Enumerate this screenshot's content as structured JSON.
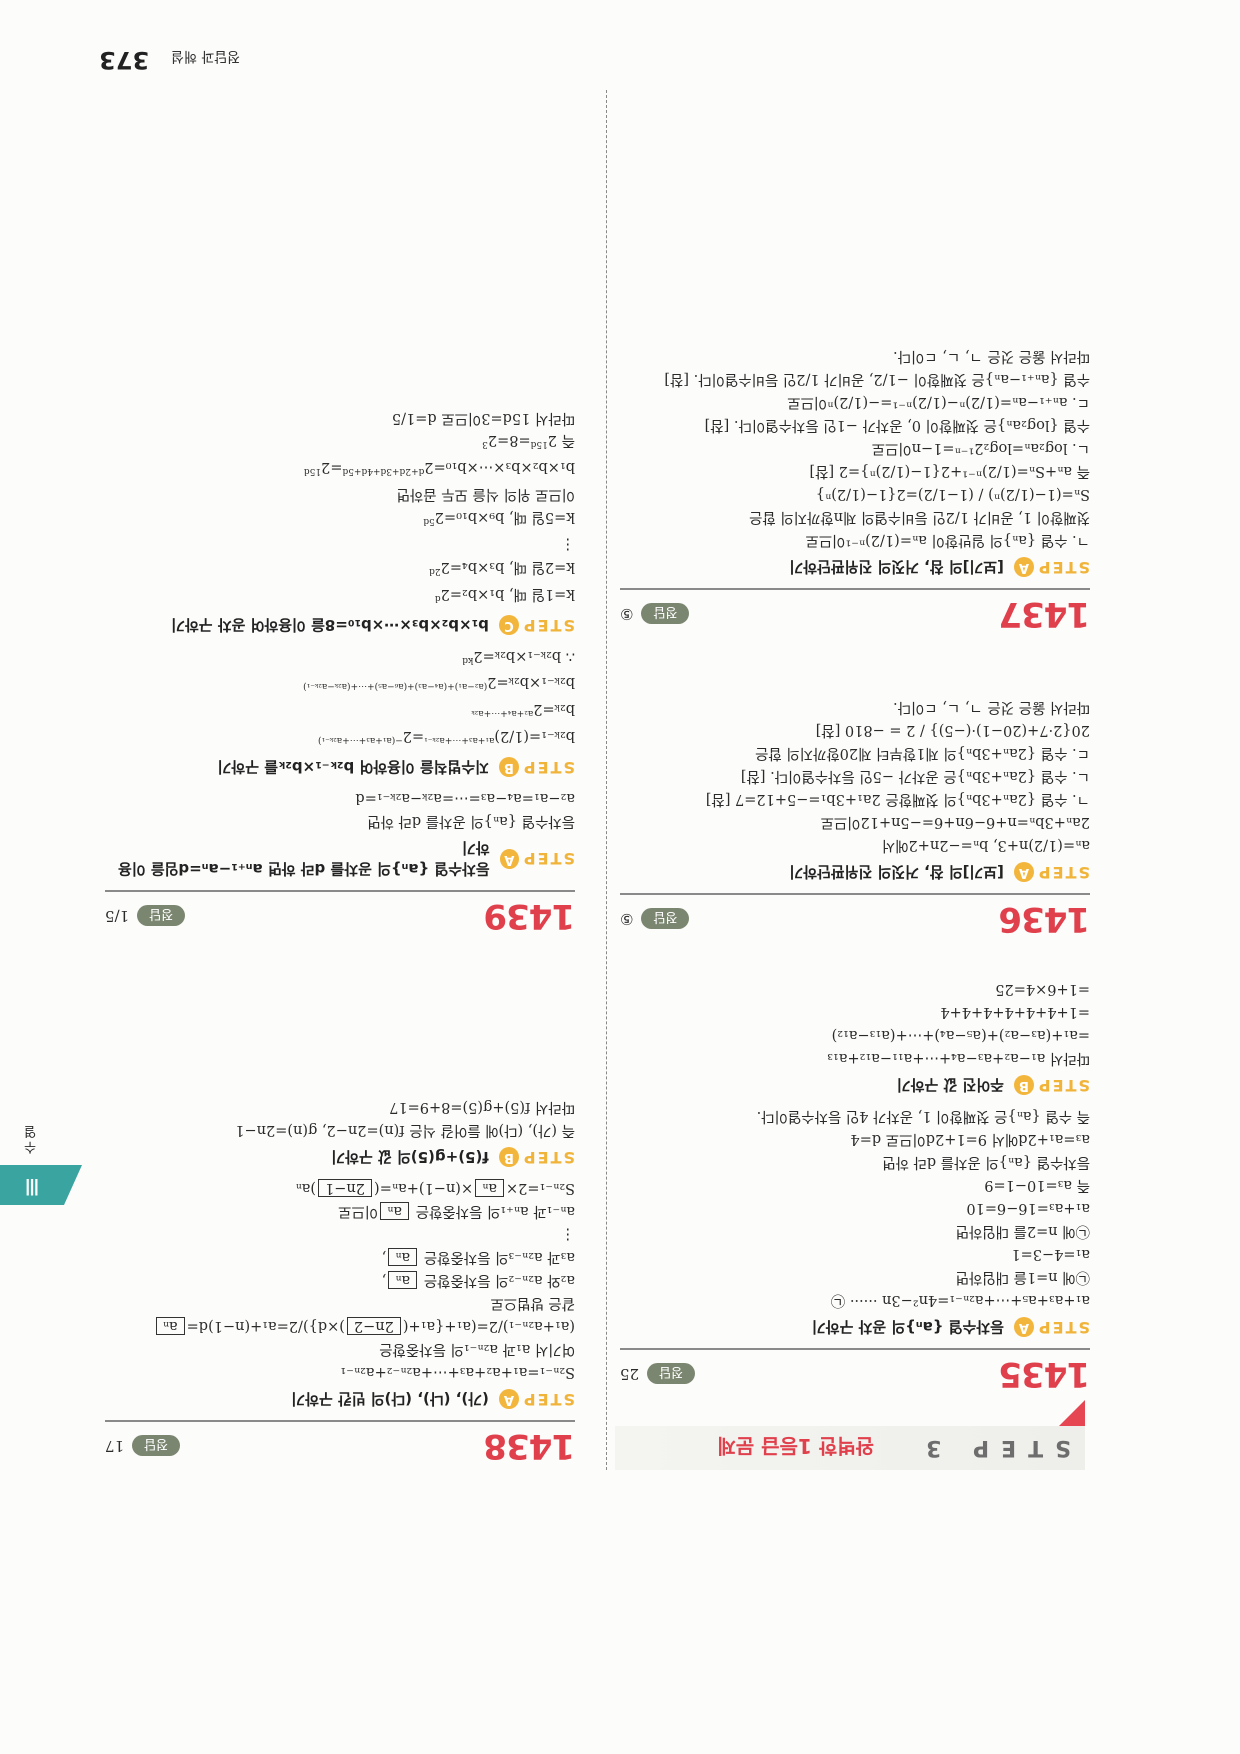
{
  "header": {
    "section_label": "정답과 해설",
    "page_number": "373"
  },
  "side_tab": {
    "numeral": "Ⅲ",
    "label": "수열"
  },
  "banner": {
    "step": "STEP 3",
    "title": "완벽한 1등급 문제"
  },
  "colors": {
    "accent_red": "#e0404c",
    "step_yellow": "#f0b43a",
    "tab_teal": "#3aa5a0",
    "answer_pill": "#7b8670"
  },
  "problems": [
    {
      "number": "1435",
      "answer_label": "정답",
      "answer": "25",
      "steps": [
        {
          "label": "STEP",
          "badge": "A",
          "title": "등차수열 {aₙ}의 공차 구하기",
          "lines": [
            "a₁+a₃+a₅+⋯+a₂ₙ₋₁=4n²−3n   ······ ㉡",
            "㉡에 n=1을 대입하면",
            "a₁=4−3=1",
            "㉡에 n=2를 대입하면",
            "a₁+a₃=16−6=10",
            "즉 a₃=10−1=9",
            "등차수열 {aₙ}의 공차를 d라 하면",
            "a₃=a₁+2d에서 9=1+2d이므로 d=4",
            "즉 수열 {aₙ}은 첫째항이 1, 공차가 4인 등차수열이다."
          ]
        },
        {
          "label": "STEP",
          "badge": "B",
          "title": "주어진 값 구하기",
          "lines": [
            "따라서 a₁−a₂+a₃−a₄+⋯+a₁₁−a₁₂+a₁₃",
            "  =a₁+(a₃−a₂)+(a₅−a₄)+⋯+(a₁₃−a₁₂)",
            "  =1+4+4+4+4+4+4",
            "  =1+6×4=25"
          ]
        }
      ]
    },
    {
      "number": "1436",
      "answer_label": "정답",
      "answer": "⑤",
      "steps": [
        {
          "label": "STEP",
          "badge": "A",
          "title": "[보기]의 참, 거짓의 진위판단하기",
          "lines": [
            "aₙ=(1/2)n+3, bₙ=−2n+2에서",
            "2aₙ+3bₙ=n+6−6n+6=−5n+12이므로",
            "ㄱ. 수열 {2aₙ+3bₙ}의 첫째항은 2a₁+3b₁=−5+12=7 [참]",
            "ㄴ. 수열 {2aₙ+3bₙ}은 공차가 −5인 등차수열이다. [참]",
            "ㄷ. 수열 {2aₙ+3bₙ}의 제1항부터 제20항까지의 합은",
            "   20{2·7+(20−1)·(−5)} / 2 = −810 [참]",
            "따라서 옳은 것은 ㄱ, ㄴ, ㄷ이다."
          ]
        }
      ]
    },
    {
      "number": "1437",
      "answer_label": "정답",
      "answer": "⑤",
      "steps": [
        {
          "label": "STEP",
          "badge": "A",
          "title": "[보기]의 참, 거짓의 진위판단하기",
          "lines": [
            "ㄱ. 수열 {aₙ}의 일반항이 aₙ=(1/2)ⁿ⁻¹이므로",
            "   첫째항이 1, 공비가 1/2인 등비수열의 제n항까지의 합은",
            "   Sₙ=(1−(1/2)ⁿ) / (1−1/2)=2{1−(1/2)ⁿ}",
            "   즉 aₙ+Sₙ=(1/2)ⁿ⁻¹+2{1−(1/2)ⁿ}=2 [참]",
            "ㄴ. log₂aₙ=log₂2¹⁻ⁿ=1−n이므로",
            "   수열 {log₂aₙ}은 첫째항이 0, 공차가 −1인 등차수열이다. [참]",
            "ㄷ. aₙ₊₁−aₙ=(1/2)ⁿ−(1/2)ⁿ⁻¹=−(1/2)ⁿ이므로",
            "   수열 {aₙ₊₁−aₙ}은 첫째항이 −1/2, 공비가 1/2인 등비수열이다. [참]",
            "따라서 옳은 것은 ㄱ, ㄴ, ㄷ이다."
          ]
        }
      ]
    },
    {
      "number": "1438",
      "answer_label": "정답",
      "answer": "17",
      "steps": [
        {
          "label": "STEP",
          "badge": "A",
          "title": "(가), (나), (다)의 빈칸 구하기",
          "lines": [
            "S₂ₙ₋₁=a₁+a₂+a₃+⋯+a₂ₙ₋₂+a₂ₙ₋₁",
            "여기서 a₁과 a₂ₙ₋₁의 등차중항은",
            [
              {
                "t": "(a₁+a₂ₙ₋₁)/2=(a₁+{a₁+("
              },
              {
                "box": "2n−2"
              },
              {
                "t": ")×d})/2=a₁+(n−1)d="
              },
              {
                "box": "aₙ"
              }
            ],
            "같은 방법으로",
            [
              {
                "t": "a₂와 a₂ₙ₋₂의 등차중항은 "
              },
              {
                "box": "aₙ"
              },
              {
                "t": ","
              }
            ],
            [
              {
                "t": "a₃과 a₂ₙ₋₃의 등차중항은 "
              },
              {
                "box": "aₙ"
              },
              {
                "t": ","
              }
            ],
            "            ⋮",
            [
              {
                "t": "aₙ₋₁과 aₙ₊₁의 등차중항은 "
              },
              {
                "box": "aₙ"
              },
              {
                "t": "이므로"
              }
            ],
            [
              {
                "t": "S₂ₙ₋₁=2×"
              },
              {
                "box": "aₙ"
              },
              {
                "t": "×(n−1)+aₙ=("
              },
              {
                "box": "2n−1"
              },
              {
                "t": ")aₙ"
              }
            ]
          ]
        },
        {
          "label": "STEP",
          "badge": "B",
          "title": "f(5)+g(5)의 값 구하기",
          "lines": [
            "즉 (가), (다)에 들어갈 식은 f(n)=2n−2, g(n)=2n−1",
            "따라서 f(5)+g(5)=8+9=17"
          ]
        }
      ]
    },
    {
      "number": "1439",
      "answer_label": "정답",
      "answer": "1/5",
      "steps": [
        {
          "label": "STEP",
          "badge": "A",
          "title": "등차수열 {aₙ}의 공차를 d라 하면 aₙ₊₁−aₙ=d임을 이용하기",
          "lines": [
            "등차수열 {aₙ}의 공차를 d라 하면",
            "a₂−a₁=a₄−a₃=⋯=a₂ₖ−a₂ₖ₋₁=d"
          ]
        },
        {
          "label": "STEP",
          "badge": "B",
          "title": "지수법칙을 이용하여 b₂ₖ₋₁×b₂ₖ를 구하기",
          "lines": [
            [
              {
                "t": "b₂ₖ₋₁=(1/2)"
              },
              {
                "sup": "a₁+a₃+⋯+a₂ₖ₋₁"
              },
              {
                "t": "=2"
              },
              {
                "sup": "−(a₁+a₃+⋯+a₂ₖ₋₁)"
              }
            ],
            [
              {
                "t": "b₂ₖ=2"
              },
              {
                "sup": "a₂+a₄+⋯+a₂ₖ"
              }
            ],
            [
              {
                "t": "b₂ₖ₋₁×b₂ₖ=2"
              },
              {
                "sup": "(a₂−a₁)+(a₄−a₃)+(a₆−a₅)+⋯+(a₂ₖ−a₂ₖ₋₁)"
              }
            ],
            [
              {
                "t": "∴ b₂ₖ₋₁×b₂ₖ=2"
              },
              {
                "sup": "kd"
              }
            ]
          ]
        },
        {
          "label": "STEP",
          "badge": "C",
          "title": "b₁×b₂×b₃×⋯×b₁₀=8을 이용하여 공차 구하기",
          "lines": [
            [
              {
                "t": "k=1일 때, b₁×b₂=2"
              },
              {
                "sup": "d"
              }
            ],
            [
              {
                "t": "k=2일 때, b₃×b₄=2"
              },
              {
                "sup": "2d"
              }
            ],
            "            ⋮",
            [
              {
                "t": "k=5일 때, b₉×b₁₀=2"
              },
              {
                "sup": "5d"
              }
            ],
            "이므로 위의 식을 모두 곱하면",
            [
              {
                "t": "b₁×b₂×b₃×⋯×b₁₀=2"
              },
              {
                "sup": "d+2d+3d+4d+5d"
              },
              {
                "t": "=2"
              },
              {
                "sup": "15d"
              }
            ],
            [
              {
                "t": "즉 2"
              },
              {
                "sup": "15d"
              },
              {
                "t": "=8=2"
              },
              {
                "sup": "3"
              }
            ],
            "따라서 15d=3이므로 d=1/5"
          ]
        }
      ]
    }
  ]
}
